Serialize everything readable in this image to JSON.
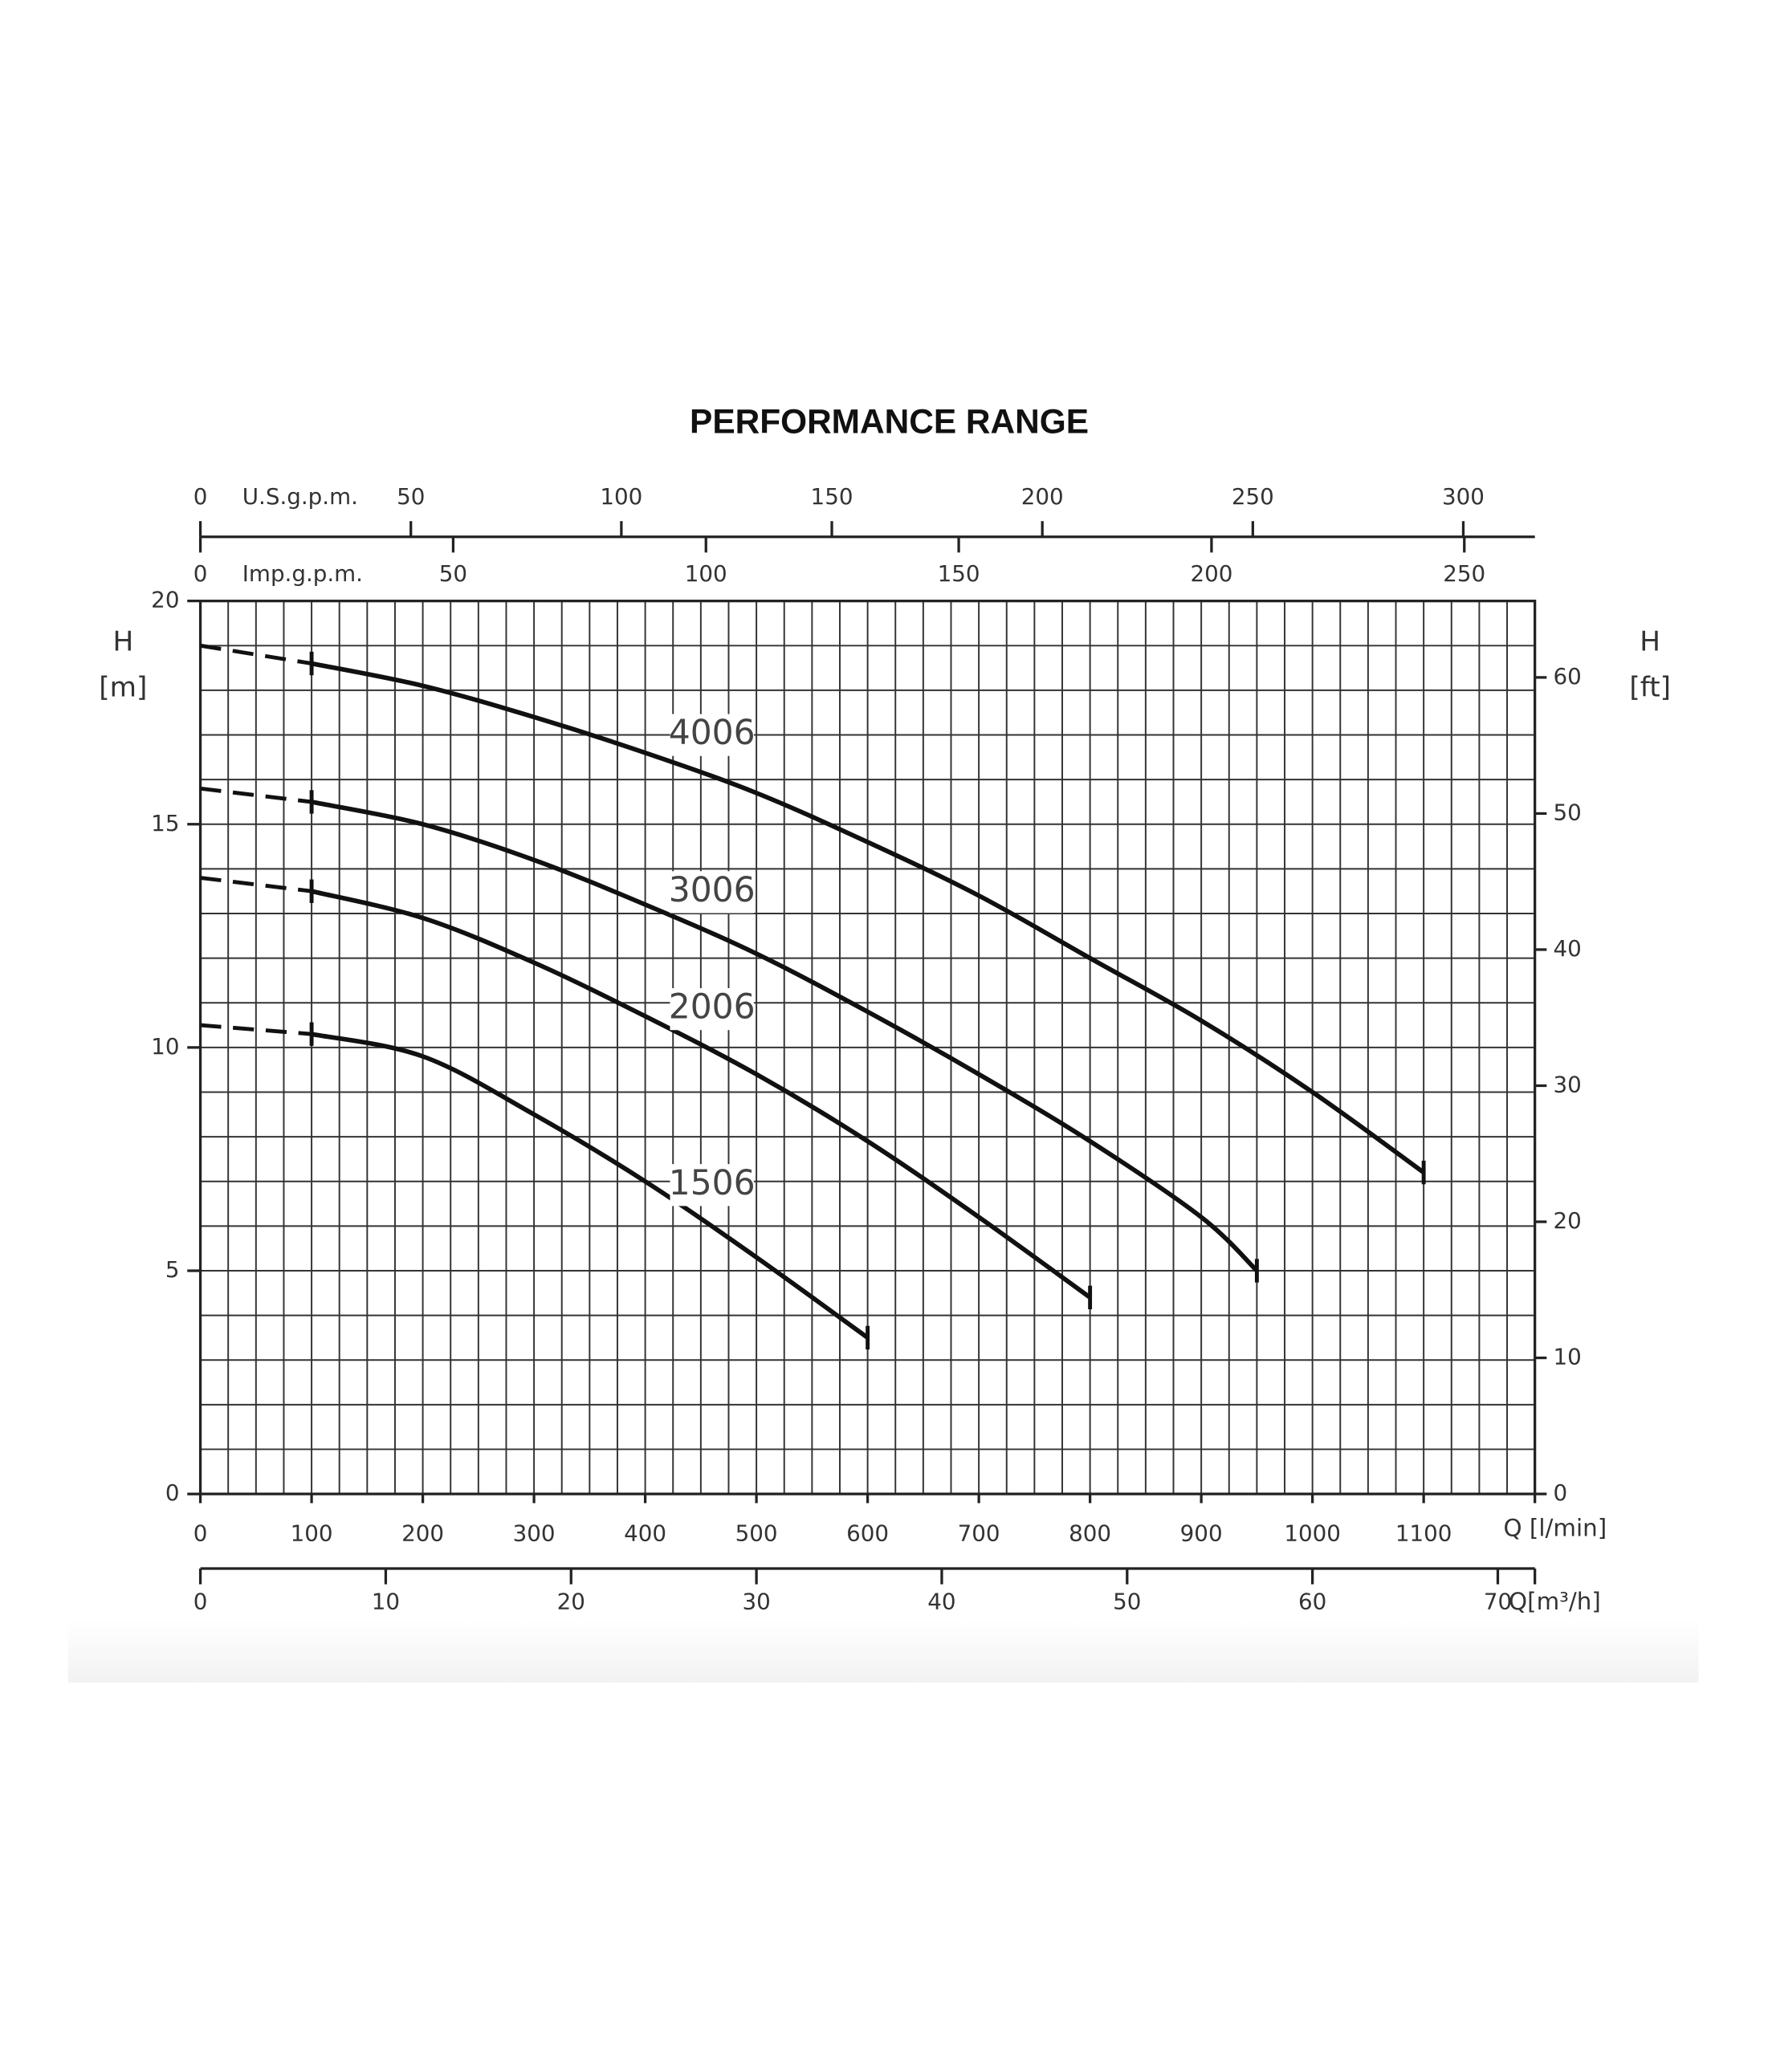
{
  "chart_data": {
    "type": "line",
    "title": "PERFORMANCE RANGE",
    "xlabel": "Q [l/min]",
    "ylabel": "H",
    "yunit": "[m]",
    "y2label": "H",
    "y2unit": "[ft]",
    "xlim": [
      0,
      1200
    ],
    "xticks": [
      0,
      100,
      200,
      300,
      400,
      500,
      600,
      700,
      800,
      900,
      1000,
      1100
    ],
    "ylim": [
      0,
      20
    ],
    "yticks": [
      0,
      5,
      10,
      15,
      20
    ],
    "y2lim": [
      0,
      65.6168
    ],
    "y2ticks": [
      0,
      10,
      20,
      30,
      40,
      50,
      60
    ],
    "grid": true,
    "xminor": 25,
    "yminor": 1,
    "secondary_x_axes": [
      {
        "name": "U.S.g.p.m.",
        "position": "top",
        "lim": [
          0,
          317.006
        ],
        "ticks": [
          0,
          50,
          100,
          150,
          200,
          250,
          300
        ]
      },
      {
        "name": "Imp.g.p.m.",
        "position": "top",
        "lim": [
          0,
          263.96
        ],
        "ticks": [
          0,
          50,
          100,
          150,
          200,
          250
        ]
      },
      {
        "name": "Q[m³/h]",
        "position": "bottom",
        "lim": [
          0,
          72
        ],
        "ticks": [
          0,
          10,
          20,
          30,
          40,
          50,
          60,
          70
        ]
      }
    ],
    "series": [
      {
        "name": "4006",
        "color": "#111111",
        "x": [
          0,
          100,
          200,
          300,
          400,
          500,
          600,
          700,
          800,
          900,
          1000,
          1100
        ],
        "values": [
          19.0,
          18.6,
          18.1,
          17.4,
          16.6,
          15.7,
          14.6,
          13.4,
          12.0,
          10.6,
          9.0,
          7.2
        ]
      },
      {
        "name": "3006",
        "color": "#111111",
        "x": [
          0,
          100,
          200,
          300,
          400,
          500,
          600,
          700,
          800,
          900,
          950
        ],
        "values": [
          15.8,
          15.5,
          15.0,
          14.2,
          13.2,
          12.1,
          10.8,
          9.4,
          7.9,
          6.2,
          5.0
        ]
      },
      {
        "name": "2006",
        "color": "#111111",
        "x": [
          0,
          100,
          200,
          300,
          400,
          500,
          600,
          700,
          800
        ],
        "values": [
          13.8,
          13.5,
          12.9,
          11.9,
          10.7,
          9.4,
          7.9,
          6.2,
          4.4
        ]
      },
      {
        "name": "1506",
        "color": "#111111",
        "x": [
          0,
          100,
          200,
          300,
          400,
          500,
          600
        ],
        "values": [
          10.5,
          10.3,
          9.8,
          8.5,
          7.0,
          5.3,
          3.5
        ]
      }
    ]
  }
}
